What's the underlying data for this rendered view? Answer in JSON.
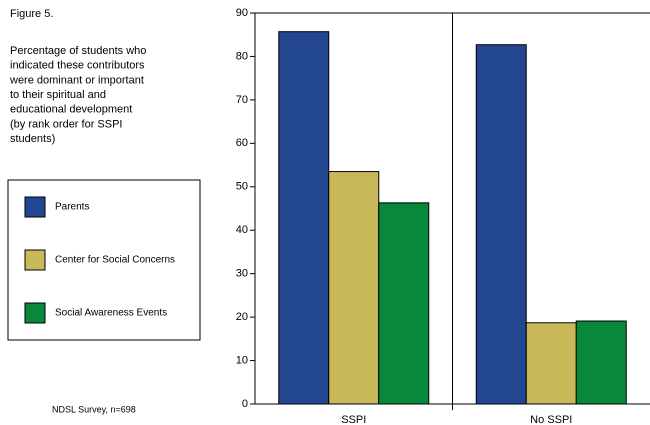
{
  "chart_data": {
    "type": "bar",
    "title": "Figure 5.",
    "subtitle": [
      "Percentage of students who",
      "indicated these contributors",
      "were dominant or important",
      "to their spiritual and",
      "educational development",
      "(by rank order for SSPI",
      "students)"
    ],
    "note": "NDSL Survey, n=698",
    "categories": [
      "SSPI",
      "No SSPI"
    ],
    "series": [
      {
        "name": "Parents",
        "color": "#22468f",
        "values": [
          85.7,
          82.7
        ]
      },
      {
        "name": "Center for Social Concerns",
        "color": "#c8b85a",
        "values": [
          53.5,
          18.7
        ]
      },
      {
        "name": "Social Awareness Events",
        "color": "#07883a",
        "values": [
          46.3,
          19.1
        ]
      }
    ],
    "ylim": [
      0,
      90
    ],
    "yticks": [
      0,
      10,
      20,
      30,
      40,
      50,
      60,
      70,
      80,
      90
    ]
  }
}
